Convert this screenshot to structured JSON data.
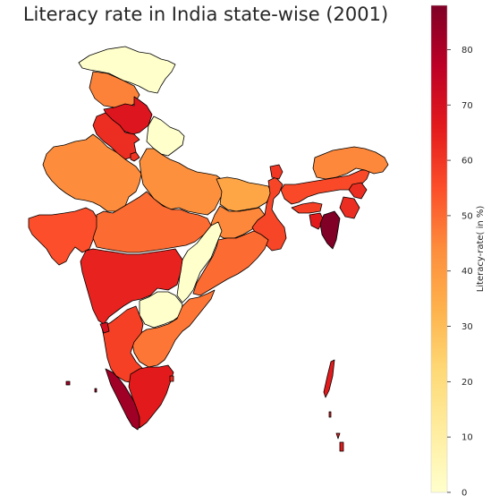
{
  "figure": {
    "title": "Literacy rate in India state-wise (2001)"
  },
  "colorbar": {
    "label": "Literacy-rate( in %)",
    "min": 0,
    "max": 88,
    "ticks": [
      "0",
      "10",
      "20",
      "30",
      "40",
      "50",
      "60",
      "70",
      "80"
    ],
    "colormap": "YlOrRd",
    "stops": [
      "#ffffcc",
      "#ffeda0",
      "#fed976",
      "#feb24c",
      "#fd8d3c",
      "#fc4e2a",
      "#e31a1c",
      "#bd0026",
      "#800026"
    ]
  },
  "chart_data": {
    "type": "choropleth",
    "title": "Literacy rate in India state-wise (2001)",
    "colorbar_label": "Literacy-rate( in %)",
    "value_range": [
      0,
      88
    ],
    "regions": [
      {
        "name": "Jammu & Kashmir",
        "value": 0
      },
      {
        "name": "Himachal Pradesh",
        "value": 46
      },
      {
        "name": "Punjab",
        "value": 68
      },
      {
        "name": "Haryana",
        "value": 62
      },
      {
        "name": "Uttarakhand",
        "value": 0
      },
      {
        "name": "Delhi",
        "value": 60
      },
      {
        "name": "Rajasthan",
        "value": 44
      },
      {
        "name": "Uttar Pradesh",
        "value": 43
      },
      {
        "name": "Bihar",
        "value": 37
      },
      {
        "name": "Gujarat",
        "value": 55
      },
      {
        "name": "Madhya Pradesh",
        "value": 50
      },
      {
        "name": "Jharkhand",
        "value": 45
      },
      {
        "name": "West Bengal",
        "value": 57
      },
      {
        "name": "Chhattisgarh",
        "value": 0
      },
      {
        "name": "Odisha",
        "value": 50
      },
      {
        "name": "Maharashtra",
        "value": 64
      },
      {
        "name": "Telangana",
        "value": 0
      },
      {
        "name": "Andhra Pradesh",
        "value": 48
      },
      {
        "name": "Karnataka",
        "value": 58
      },
      {
        "name": "Goa",
        "value": 70
      },
      {
        "name": "Kerala",
        "value": 82
      },
      {
        "name": "Tamil Nadu",
        "value": 66
      },
      {
        "name": "Puducherry",
        "value": 62
      },
      {
        "name": "Sikkim",
        "value": 60
      },
      {
        "name": "Assam",
        "value": 56
      },
      {
        "name": "Arunachal Pradesh",
        "value": 45
      },
      {
        "name": "Nagaland",
        "value": 62
      },
      {
        "name": "Manipur",
        "value": 62
      },
      {
        "name": "Meghalaya",
        "value": 58
      },
      {
        "name": "Tripura",
        "value": 66
      },
      {
        "name": "Mizoram",
        "value": 88
      },
      {
        "name": "Andaman & Nicobar Islands",
        "value": 66
      },
      {
        "name": "Lakshadweep",
        "value": 80
      }
    ]
  }
}
